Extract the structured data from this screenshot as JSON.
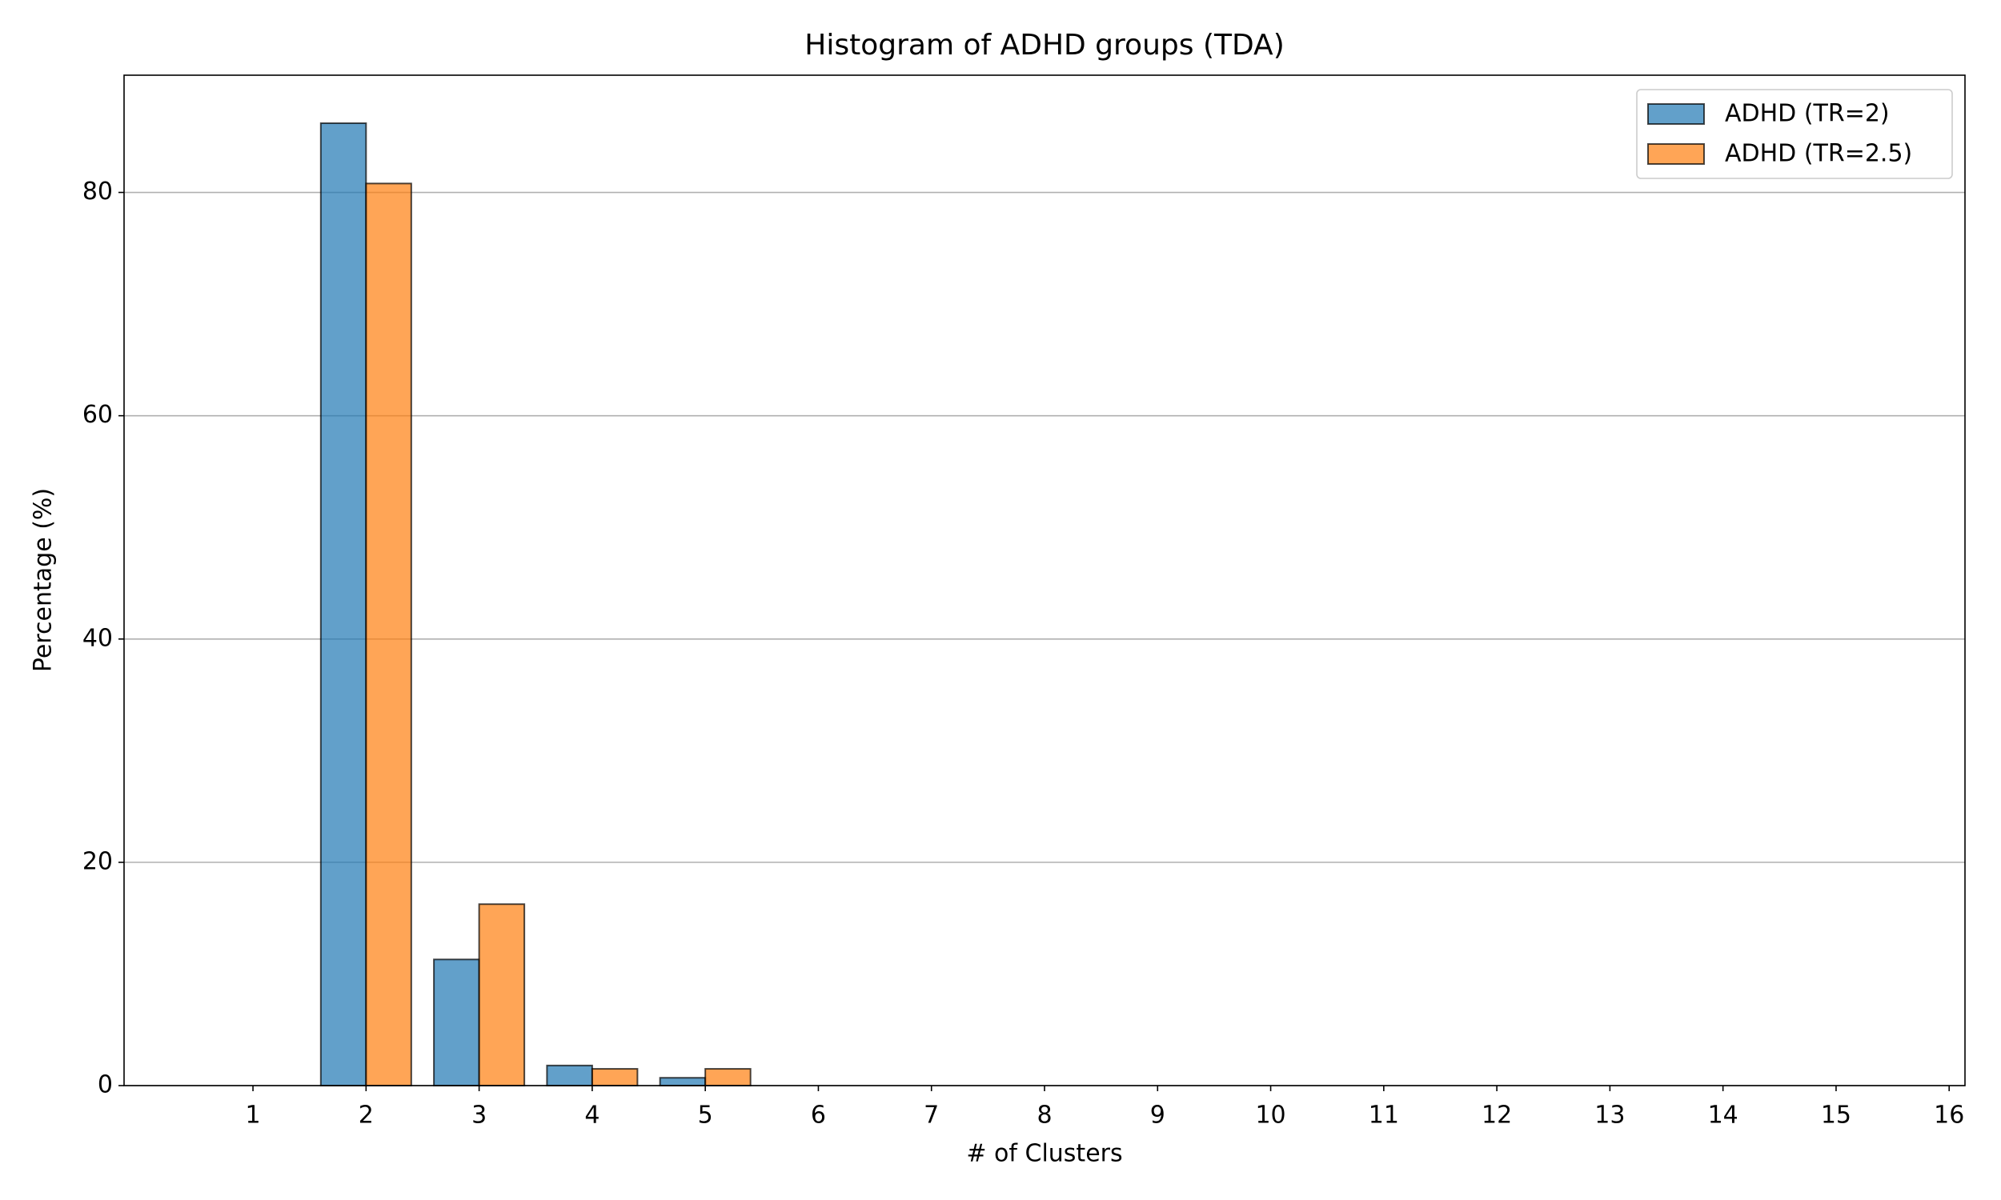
{
  "chart_data": {
    "type": "bar",
    "title": "Histogram of ADHD groups (TDA)",
    "x_label": "# of Clusters",
    "y_label": "Percentage (%)",
    "x": [
      1,
      2,
      3,
      4,
      5,
      6,
      7,
      8,
      9,
      10,
      11,
      12,
      13,
      14,
      15
    ],
    "series": [
      {
        "name": "ADHD (TR=2)",
        "color": "#1f77b4",
        "values": [
          0,
          86.2,
          11.3,
          1.8,
          0.7,
          0,
          0,
          0,
          0,
          0,
          0,
          0,
          0,
          0,
          0
        ]
      },
      {
        "name": "ADHD (TR=2.5)",
        "color": "#ff7f0e",
        "values": [
          0,
          80.8,
          16.25,
          1.5,
          1.5,
          0,
          0,
          0,
          0,
          0,
          0,
          0,
          0,
          0,
          0
        ]
      }
    ],
    "xlim": [
      -0.14,
      16.14
    ],
    "xticks": [
      1,
      2,
      3,
      4,
      5,
      6,
      7,
      8,
      9,
      10,
      11,
      12,
      13,
      14,
      15,
      16
    ],
    "ylim": [
      0,
      90.5
    ],
    "yticks": [
      0,
      20,
      40,
      60,
      80
    ],
    "grid": true,
    "legend": "upper right"
  }
}
